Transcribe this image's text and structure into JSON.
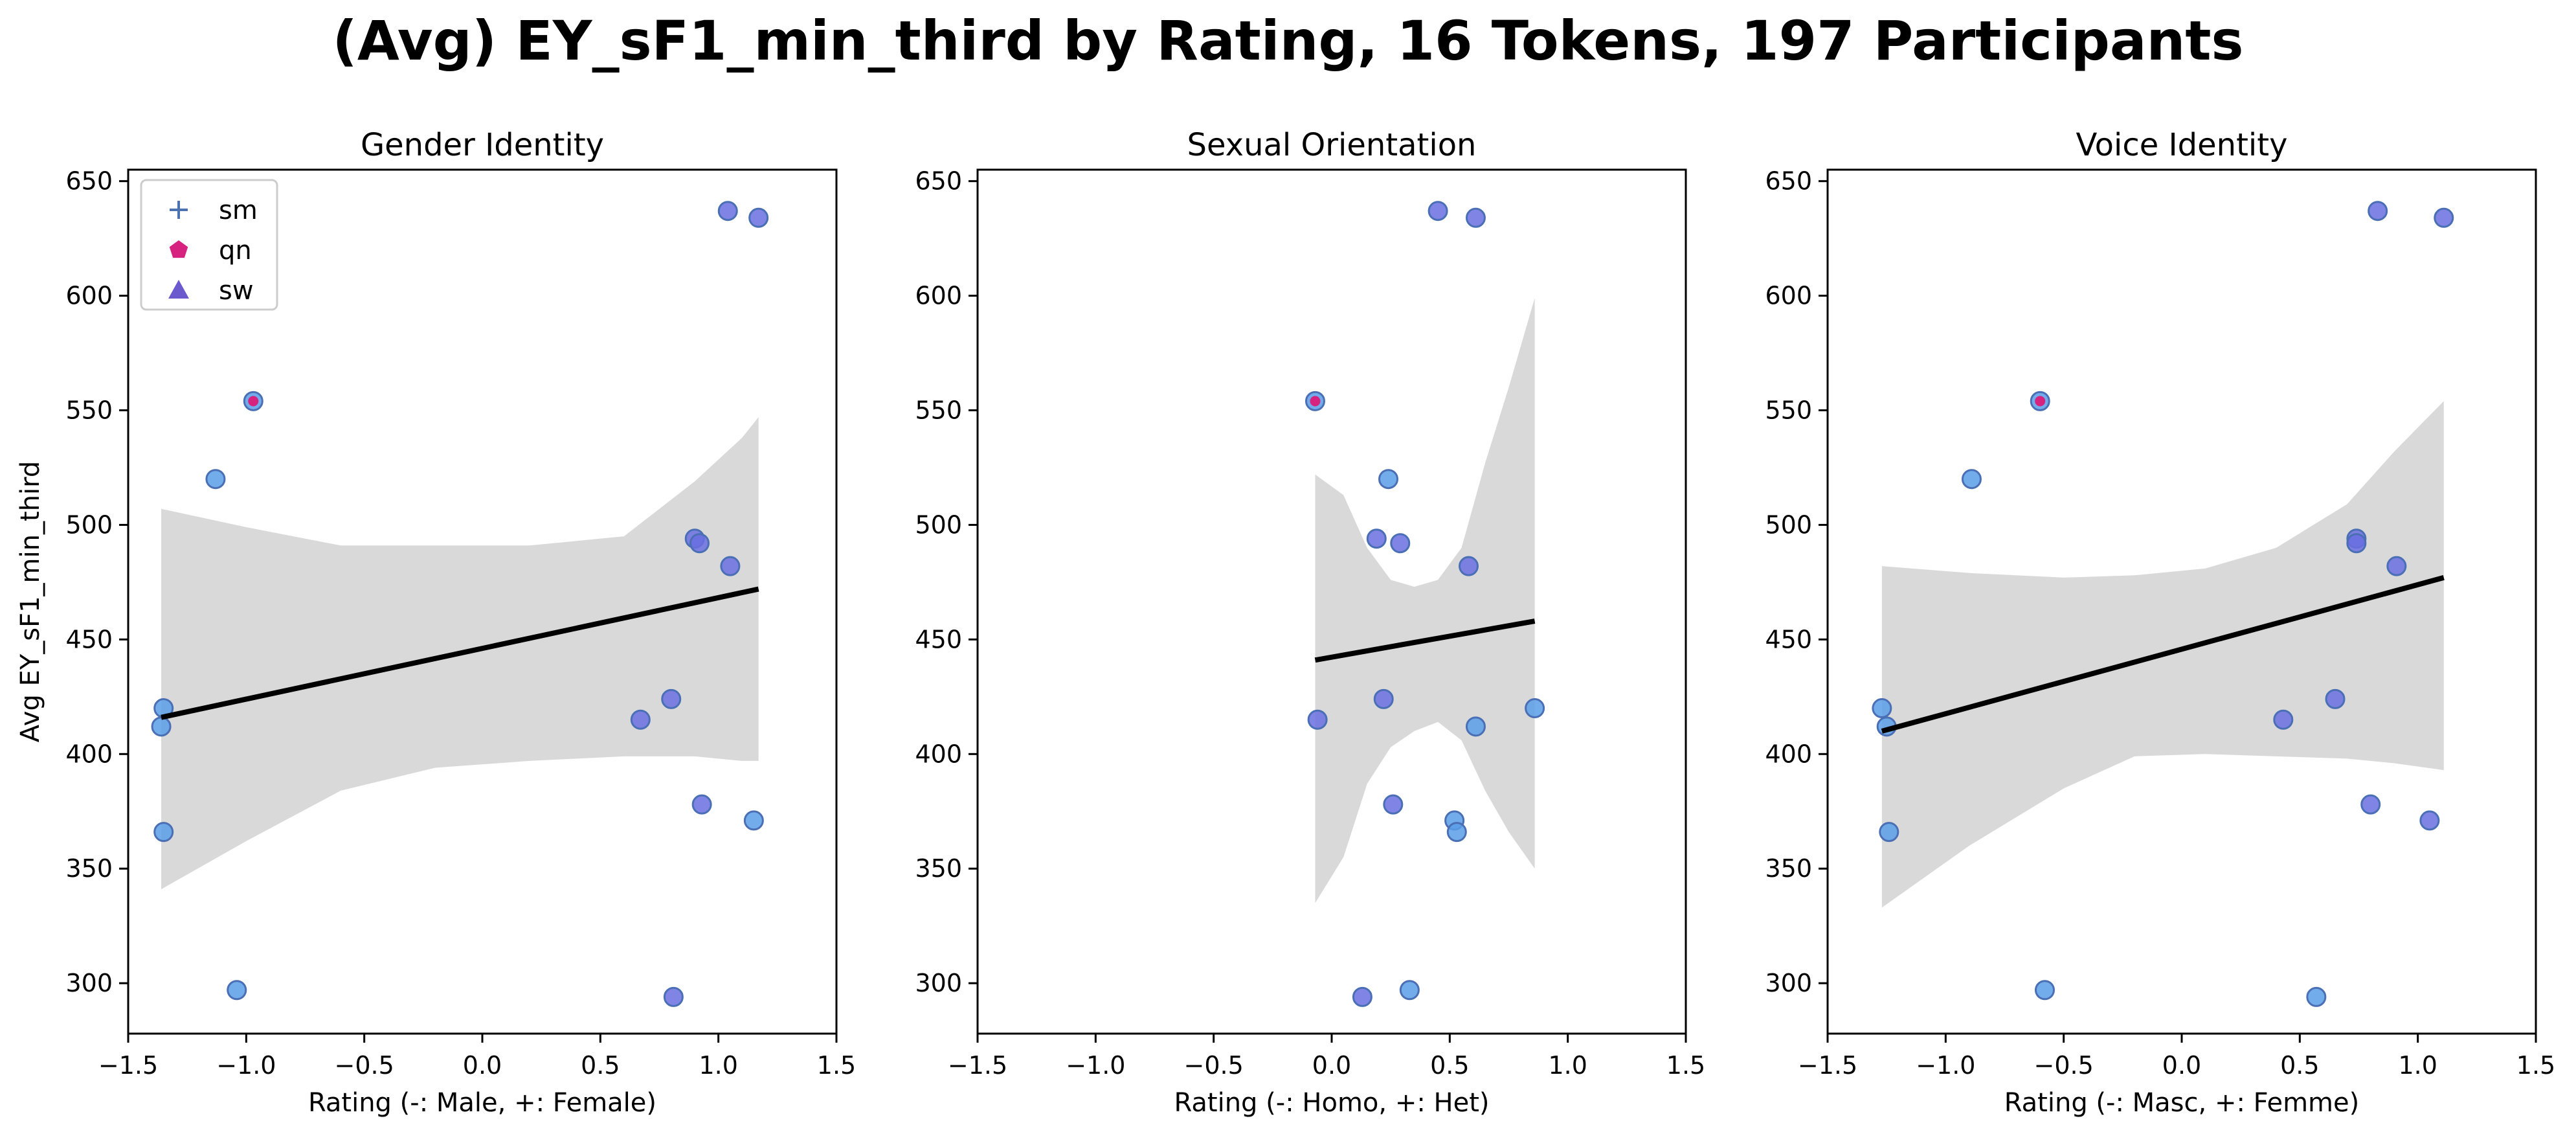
{
  "figure": {
    "title": "(Avg) EY_sF1_min_third by Rating, 16 Tokens, 197 Participants"
  },
  "legend": {
    "placement": "upper-left",
    "entries": [
      {
        "label": "sm",
        "marker": "plus",
        "color": "#4c72b0"
      },
      {
        "label": "qn",
        "marker": "pentagon",
        "color": "#d6237f"
      },
      {
        "label": "sw",
        "marker": "triangle",
        "color": "#6a5acd"
      }
    ]
  },
  "colors": {
    "point_fill_sm": "#5b9ee8",
    "point_fill_sw": "#6a6ee0",
    "point_edge": "#4a6fb5",
    "qn_center": "#d6237f",
    "regression_line": "#000000",
    "confidence_band": "#d9d9d9"
  },
  "chart_data": [
    {
      "type": "scatter",
      "title": "Gender Identity",
      "xlabel": "Rating (-: Male, +: Female)",
      "ylabel": "Avg EY_sF1_min_third",
      "xlim": [
        -1.5,
        1.5
      ],
      "ylim": [
        278,
        655
      ],
      "xticks": [
        -1.5,
        -1.0,
        -0.5,
        0.0,
        0.5,
        1.0,
        1.5
      ],
      "yticks": [
        300,
        350,
        400,
        450,
        500,
        550,
        600,
        650
      ],
      "grid": false,
      "show_legend": true,
      "points": [
        {
          "x": 1.04,
          "y": 637,
          "group": "sw"
        },
        {
          "x": 1.17,
          "y": 634,
          "group": "sw"
        },
        {
          "x": -0.97,
          "y": 554,
          "group": "qn"
        },
        {
          "x": -1.13,
          "y": 520,
          "group": "sm"
        },
        {
          "x": 0.9,
          "y": 494,
          "group": "sw"
        },
        {
          "x": 0.92,
          "y": 492,
          "group": "sw"
        },
        {
          "x": 1.05,
          "y": 482,
          "group": "sw"
        },
        {
          "x": -1.35,
          "y": 420,
          "group": "sm"
        },
        {
          "x": -1.36,
          "y": 412,
          "group": "sm"
        },
        {
          "x": 0.8,
          "y": 424,
          "group": "sw"
        },
        {
          "x": 0.67,
          "y": 415,
          "group": "sw"
        },
        {
          "x": 0.93,
          "y": 378,
          "group": "sw"
        },
        {
          "x": 1.15,
          "y": 371,
          "group": "sm"
        },
        {
          "x": -1.35,
          "y": 366,
          "group": "sm"
        },
        {
          "x": -1.04,
          "y": 297,
          "group": "sm"
        },
        {
          "x": 0.81,
          "y": 294,
          "group": "sw"
        }
      ],
      "regression": {
        "x": [
          -1.36,
          1.17
        ],
        "y": [
          416,
          472
        ]
      },
      "band": {
        "x": [
          -1.36,
          -1.0,
          -0.6,
          -0.2,
          0.2,
          0.6,
          0.9,
          1.1,
          1.17
        ],
        "upper": [
          507,
          499,
          491,
          491,
          491,
          495,
          519,
          538,
          547
        ],
        "lower": [
          341,
          362,
          384,
          394,
          397,
          399,
          399,
          397,
          397
        ]
      }
    },
    {
      "type": "scatter",
      "title": "Sexual Orientation",
      "xlabel": "Rating (-: Homo, +: Het)",
      "ylabel": "",
      "xlim": [
        -1.5,
        1.5
      ],
      "ylim": [
        278,
        655
      ],
      "xticks": [
        -1.5,
        -1.0,
        -0.5,
        0.0,
        0.5,
        1.0,
        1.5
      ],
      "yticks": [
        300,
        350,
        400,
        450,
        500,
        550,
        600,
        650
      ],
      "grid": false,
      "show_legend": false,
      "points": [
        {
          "x": 0.45,
          "y": 637,
          "group": "sw"
        },
        {
          "x": 0.61,
          "y": 634,
          "group": "sw"
        },
        {
          "x": -0.07,
          "y": 554,
          "group": "qn"
        },
        {
          "x": 0.24,
          "y": 520,
          "group": "sm"
        },
        {
          "x": 0.19,
          "y": 494,
          "group": "sw"
        },
        {
          "x": 0.29,
          "y": 492,
          "group": "sw"
        },
        {
          "x": 0.58,
          "y": 482,
          "group": "sw"
        },
        {
          "x": 0.86,
          "y": 420,
          "group": "sm"
        },
        {
          "x": 0.61,
          "y": 412,
          "group": "sm"
        },
        {
          "x": 0.22,
          "y": 424,
          "group": "sw"
        },
        {
          "x": -0.06,
          "y": 415,
          "group": "sw"
        },
        {
          "x": 0.26,
          "y": 378,
          "group": "sw"
        },
        {
          "x": 0.52,
          "y": 371,
          "group": "sm"
        },
        {
          "x": 0.53,
          "y": 366,
          "group": "sm"
        },
        {
          "x": 0.33,
          "y": 297,
          "group": "sm"
        },
        {
          "x": 0.13,
          "y": 294,
          "group": "sw"
        }
      ],
      "regression": {
        "x": [
          -0.07,
          0.86
        ],
        "y": [
          441,
          458
        ]
      },
      "band": {
        "x": [
          -0.07,
          0.05,
          0.15,
          0.25,
          0.35,
          0.45,
          0.55,
          0.65,
          0.75,
          0.86
        ],
        "upper": [
          522,
          513,
          490,
          476,
          473,
          476,
          490,
          527,
          560,
          599
        ],
        "lower": [
          335,
          355,
          387,
          403,
          410,
          414,
          406,
          384,
          366,
          350
        ]
      }
    },
    {
      "type": "scatter",
      "title": "Voice Identity",
      "xlabel": "Rating (-: Masc, +: Femme)",
      "ylabel": "",
      "xlim": [
        -1.5,
        1.5
      ],
      "ylim": [
        278,
        655
      ],
      "xticks": [
        -1.5,
        -1.0,
        -0.5,
        0.0,
        0.5,
        1.0,
        1.5
      ],
      "yticks": [
        300,
        350,
        400,
        450,
        500,
        550,
        600,
        650
      ],
      "grid": false,
      "show_legend": false,
      "points": [
        {
          "x": 0.83,
          "y": 637,
          "group": "sw"
        },
        {
          "x": 1.11,
          "y": 634,
          "group": "sw"
        },
        {
          "x": -0.6,
          "y": 554,
          "group": "qn"
        },
        {
          "x": -0.89,
          "y": 520,
          "group": "sm"
        },
        {
          "x": 0.74,
          "y": 494,
          "group": "sw"
        },
        {
          "x": 0.74,
          "y": 492,
          "group": "sw"
        },
        {
          "x": 0.91,
          "y": 482,
          "group": "sw"
        },
        {
          "x": -1.27,
          "y": 420,
          "group": "sm"
        },
        {
          "x": -1.25,
          "y": 412,
          "group": "sm"
        },
        {
          "x": 0.65,
          "y": 424,
          "group": "sw"
        },
        {
          "x": 0.43,
          "y": 415,
          "group": "sw"
        },
        {
          "x": 0.8,
          "y": 378,
          "group": "sw"
        },
        {
          "x": 1.05,
          "y": 371,
          "group": "sw"
        },
        {
          "x": -1.24,
          "y": 366,
          "group": "sm"
        },
        {
          "x": -0.58,
          "y": 297,
          "group": "sm"
        },
        {
          "x": 0.57,
          "y": 294,
          "group": "sm"
        }
      ],
      "regression": {
        "x": [
          -1.27,
          1.11
        ],
        "y": [
          410,
          477
        ]
      },
      "band": {
        "x": [
          -1.27,
          -0.9,
          -0.5,
          -0.2,
          0.1,
          0.4,
          0.7,
          0.9,
          1.11
        ],
        "upper": [
          482,
          479,
          477,
          478,
          481,
          490,
          509,
          532,
          554
        ],
        "lower": [
          333,
          360,
          385,
          399,
          400,
          399,
          398,
          396,
          393
        ]
      }
    }
  ]
}
